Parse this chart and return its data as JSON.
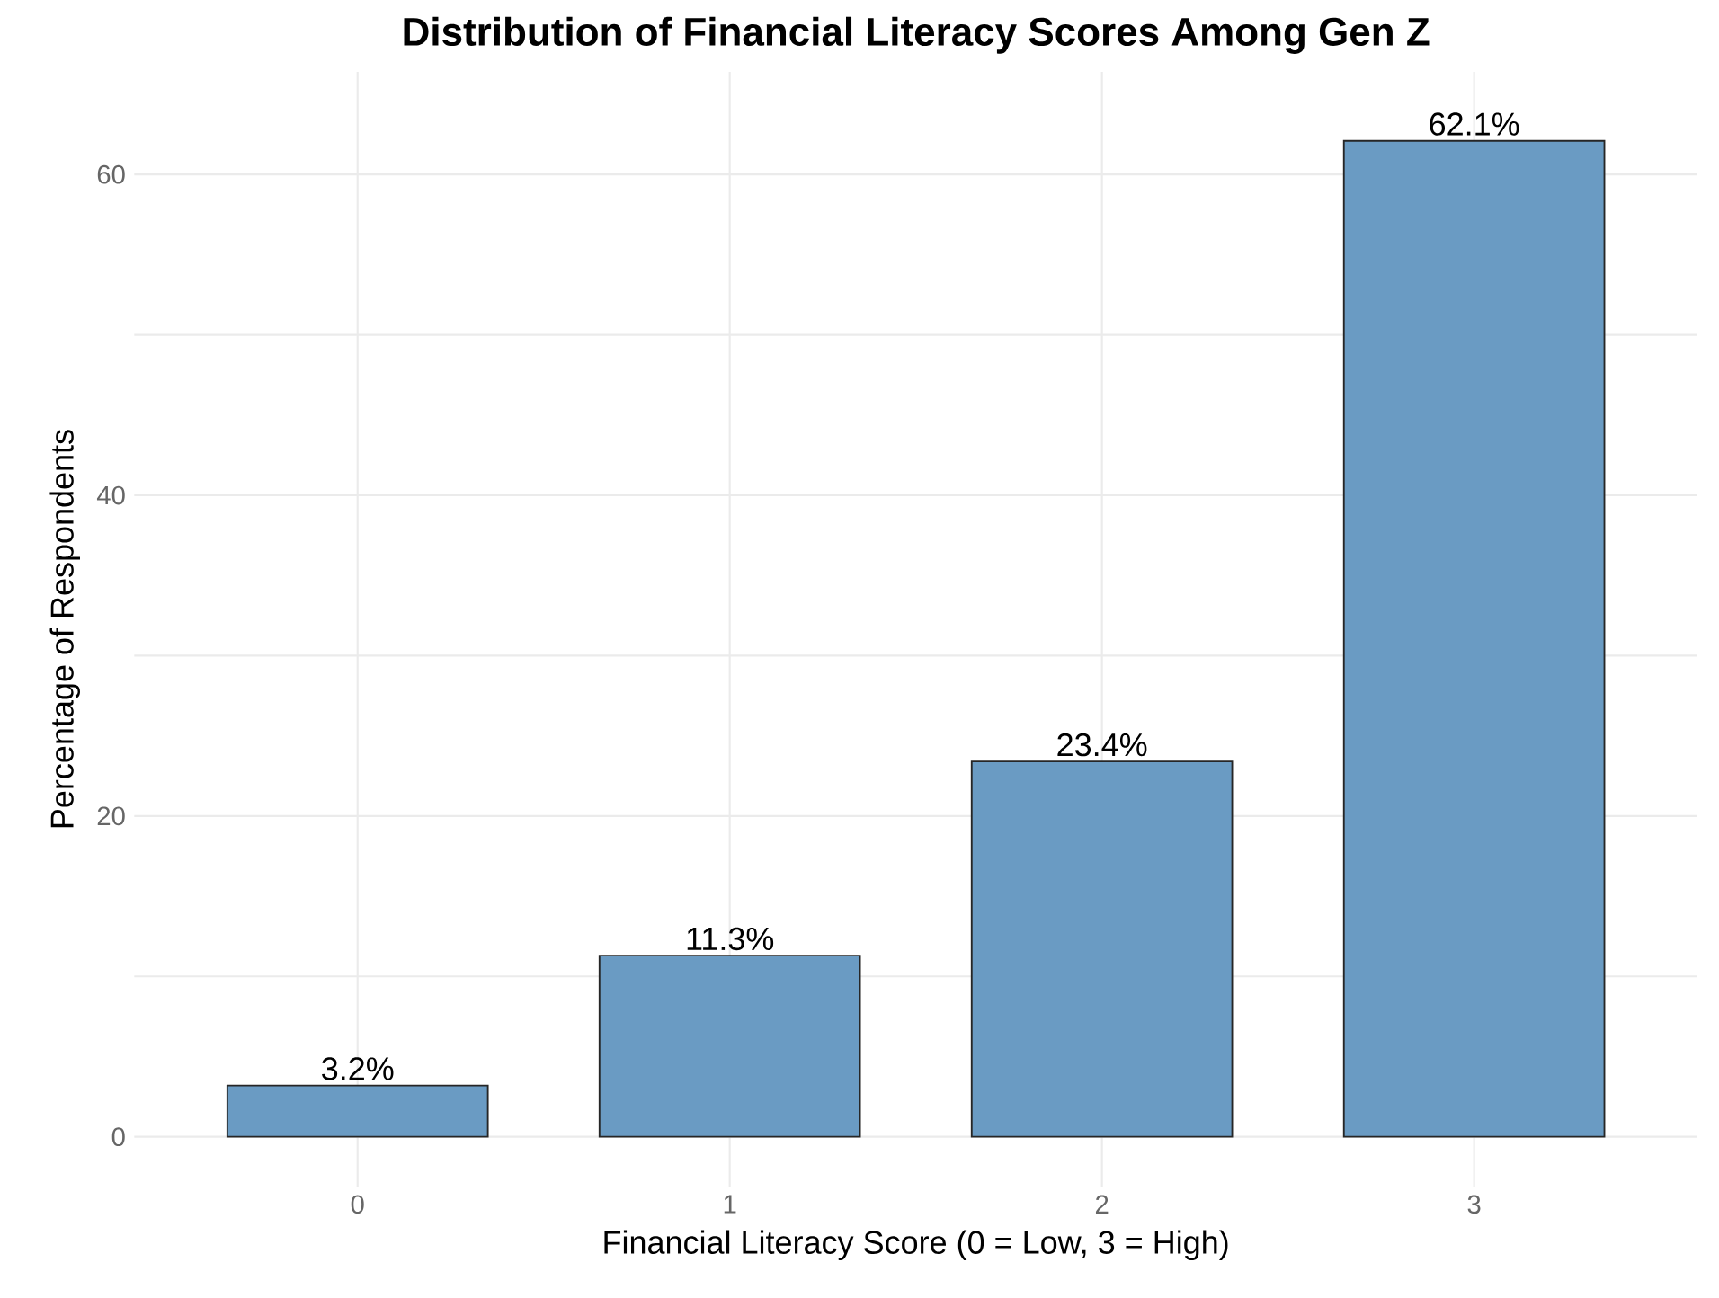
{
  "chart_data": {
    "type": "bar",
    "title": "Distribution of Financial Literacy Scores Among Gen Z",
    "xlabel": "Financial Literacy Score (0 = Low, 3 = High)",
    "ylabel": "Percentage of Respondents",
    "categories": [
      "0",
      "1",
      "2",
      "3"
    ],
    "values": [
      3.2,
      11.3,
      23.4,
      62.1
    ],
    "color": "#6a9bc3",
    "value_labels": [
      "3.2%",
      "11.3%",
      "23.4%",
      "62.1%"
    ],
    "ylim": [
      -3.1,
      66.4
    ],
    "yticks": [
      0,
      {
        "value": 10,
        "label": null
      },
      20,
      {
        "value": 30,
        "label": null
      },
      40,
      {
        "value": 50,
        "label": null
      },
      60
    ],
    "grid": true
  }
}
